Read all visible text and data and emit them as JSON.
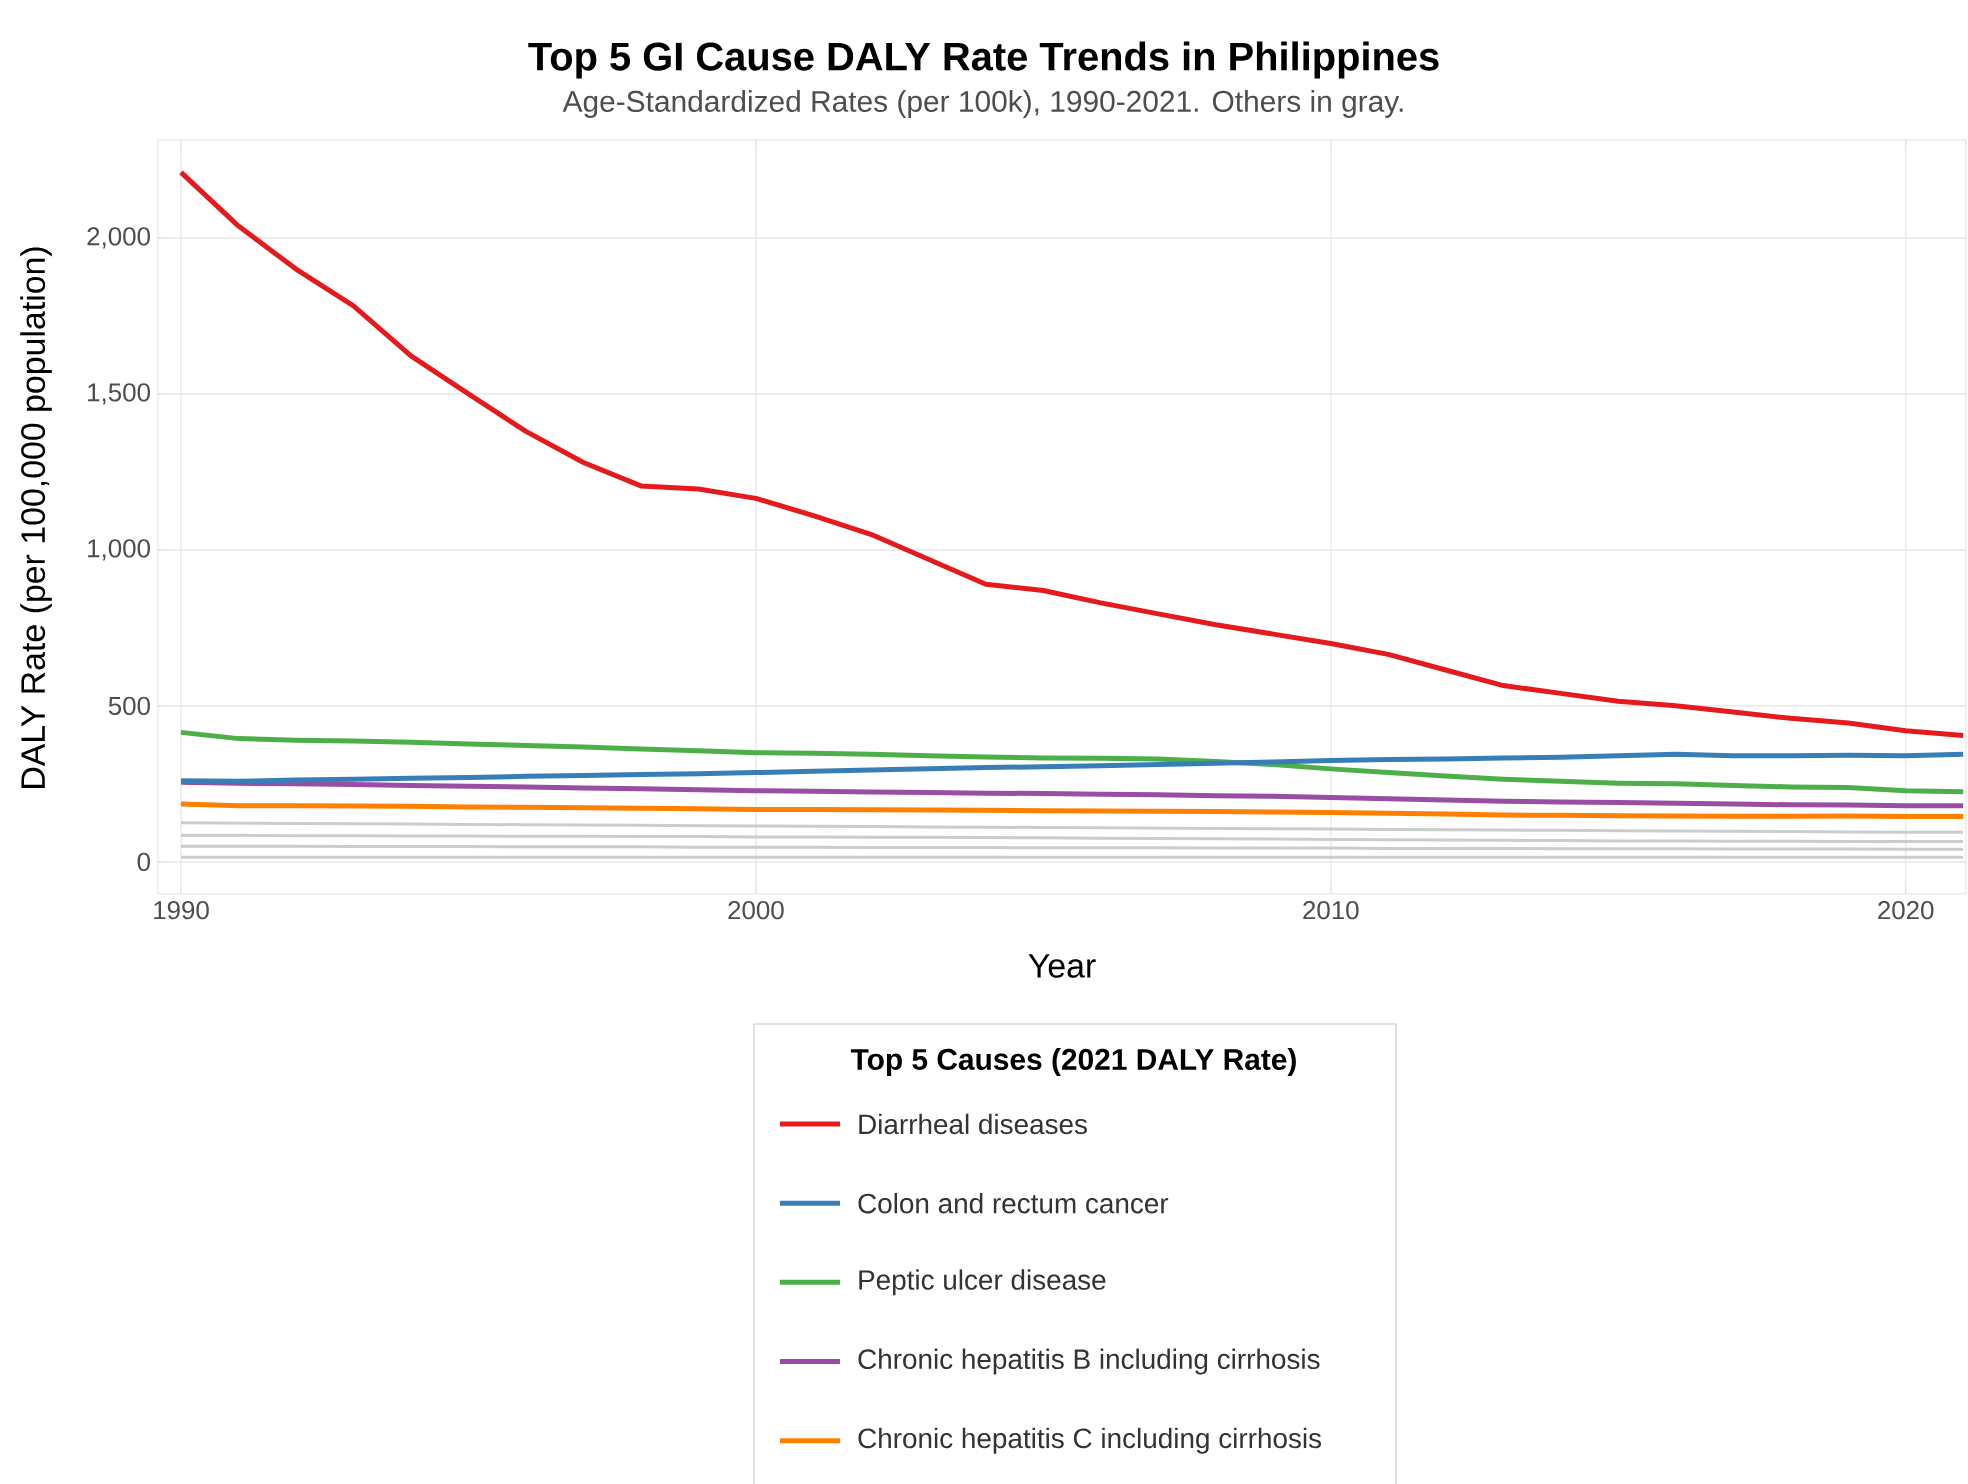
{
  "chart_data": {
    "type": "line",
    "title": "Top 5 GI Cause DALY Rate Trends in Philippines",
    "subtitle": "Age-Standardized Rates (per 100k), 1990-2021. Others in gray.",
    "xlabel": "Year",
    "ylabel": "DALY Rate (per 100,000 population)",
    "legend_title": "Top 5 Causes (2021 DALY Rate)",
    "x": [
      1990,
      1991,
      1992,
      1993,
      1994,
      1995,
      1996,
      1997,
      1998,
      1999,
      2000,
      2001,
      2002,
      2003,
      2004,
      2005,
      2006,
      2007,
      2008,
      2009,
      2010,
      2011,
      2012,
      2013,
      2014,
      2015,
      2016,
      2017,
      2018,
      2019,
      2020,
      2021
    ],
    "series": [
      {
        "name": "Diarrheal diseases",
        "color": "#e41a1c",
        "values": [
          2210,
          2038,
          1900,
          1782,
          1622,
          1500,
          1380,
          1280,
          1205,
          1195,
          1165,
          1110,
          1050,
          970,
          890,
          870,
          830,
          795,
          760,
          730,
          700,
          665,
          615,
          565,
          540,
          515,
          500,
          480,
          460,
          445,
          420,
          405
        ]
      },
      {
        "name": "Colon and rectum cancer",
        "color": "#377eb8",
        "values": [
          260,
          258,
          262,
          265,
          268,
          270,
          274,
          277,
          280,
          282,
          286,
          290,
          294,
          298,
          302,
          305,
          308,
          312,
          316,
          320,
          325,
          328,
          330,
          333,
          335,
          340,
          345,
          340,
          340,
          342,
          340,
          345
        ]
      },
      {
        "name": "Peptic ulcer disease",
        "color": "#4daf4a",
        "values": [
          415,
          395,
          390,
          387,
          383,
          378,
          373,
          368,
          362,
          356,
          350,
          348,
          345,
          340,
          336,
          333,
          332,
          330,
          322,
          312,
          298,
          286,
          275,
          265,
          258,
          252,
          250,
          245,
          240,
          238,
          228,
          225
        ]
      },
      {
        "name": "Chronic hepatitis B including cirrhosis",
        "color": "#984ea3",
        "values": [
          255,
          252,
          250,
          248,
          245,
          242,
          240,
          237,
          234,
          231,
          228,
          226,
          224,
          222,
          220,
          219,
          217,
          215,
          212,
          210,
          206,
          202,
          198,
          194,
          192,
          190,
          188,
          185,
          183,
          182,
          180,
          180
        ]
      },
      {
        "name": "Chronic hepatitis C including cirrhosis",
        "color": "#ff7f00",
        "values": [
          185,
          180,
          180,
          179,
          178,
          176,
          175,
          173,
          172,
          170,
          168,
          168,
          167,
          166,
          165,
          164,
          163,
          162,
          161,
          160,
          158,
          156,
          153,
          150,
          149,
          148,
          147,
          146,
          146,
          147,
          145,
          145
        ]
      },
      {
        "color": "#cccccc",
        "values": [
          125,
          124,
          123,
          122,
          121,
          120,
          119,
          118,
          117,
          116,
          115,
          114,
          113,
          112,
          111,
          110,
          109,
          108,
          107,
          106,
          105,
          104,
          103,
          102,
          101,
          100,
          99,
          98,
          97,
          96,
          95,
          95
        ]
      },
      {
        "color": "#cccccc",
        "values": [
          85,
          85,
          84,
          84,
          83,
          83,
          82,
          82,
          81,
          81,
          80,
          80,
          79,
          79,
          78,
          77,
          76,
          75,
          74,
          73,
          72,
          71,
          70,
          69,
          68,
          67,
          67,
          66,
          66,
          65,
          65,
          65
        ]
      },
      {
        "color": "#cccccc",
        "values": [
          50,
          50,
          50,
          49,
          49,
          49,
          48,
          48,
          48,
          47,
          47,
          47,
          46,
          46,
          46,
          45,
          45,
          45,
          44,
          44,
          44,
          43,
          43,
          43,
          42,
          42,
          42,
          41,
          41,
          41,
          40,
          40
        ]
      },
      {
        "color": "#cccccc",
        "values": [
          15,
          15,
          15,
          15,
          15,
          15,
          15,
          15,
          15,
          15,
          15,
          15,
          15,
          15,
          15,
          15,
          15,
          15,
          15,
          15,
          15,
          15,
          15,
          15,
          15,
          15,
          15,
          15,
          15,
          15,
          15,
          15
        ]
      }
    ],
    "xlim": [
      1989.6,
      2021.05
    ],
    "ylim": [
      -103,
      2314
    ],
    "xticks": [
      1990,
      2000,
      2010,
      2020
    ],
    "yticks": [
      0,
      500,
      {
        "value": 1000,
        "label": "1,000"
      },
      {
        "value": 1500,
        "label": "1,500"
      },
      {
        "value": 2000,
        "label": "2,000"
      }
    ],
    "grid": true,
    "legend": "bottom",
    "marker": "none",
    "line_style": "solid"
  }
}
